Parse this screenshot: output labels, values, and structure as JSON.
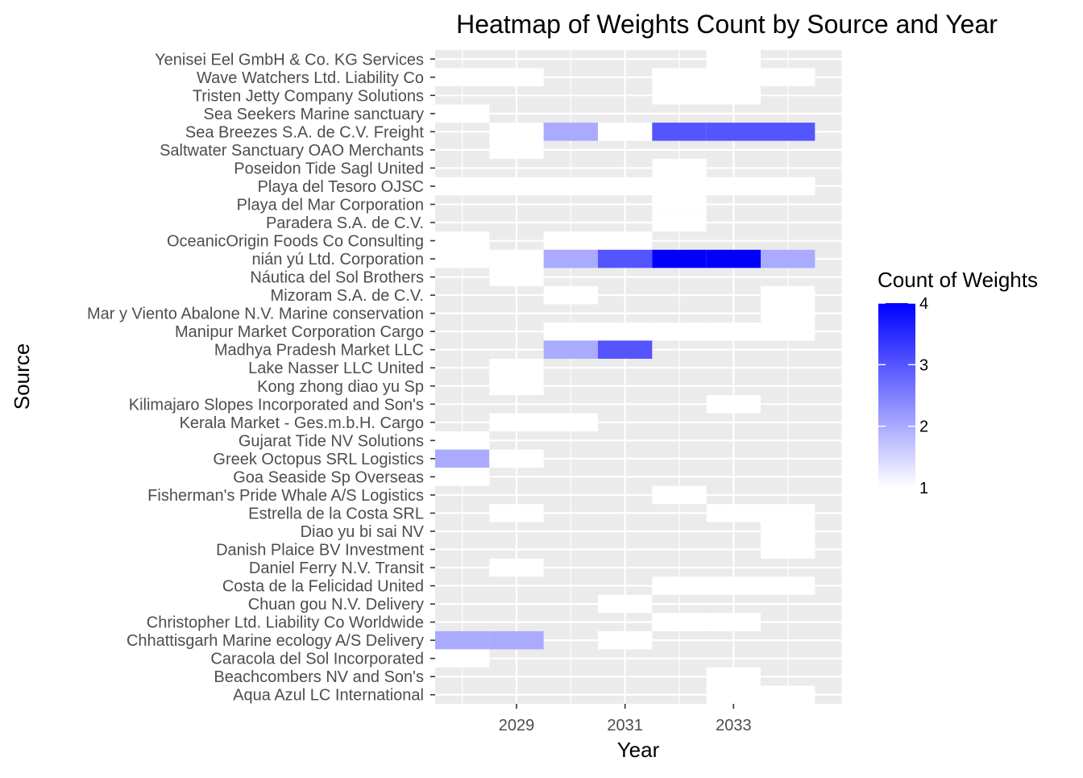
{
  "chart_data": {
    "type": "heatmap",
    "title": "Heatmap of Weights Count by Source and Year",
    "xlabel": "Year",
    "ylabel": "Source",
    "x_tick_labels": [
      "2029",
      "2031",
      "2033"
    ],
    "x_tick_values": [
      2029,
      2031,
      2033
    ],
    "xlim": [
      2027.5,
      2035.0
    ],
    "legend": {
      "title": "Count of Weights",
      "labels": [
        "4",
        "3",
        "2",
        "1"
      ],
      "values": [
        4,
        3,
        2,
        1
      ],
      "min": 1,
      "max": 4,
      "color_low": "#ffffff",
      "color_high": "#0000ff",
      "position": "right"
    },
    "panel_background": "#ebebeb",
    "grid": true,
    "sources": [
      "Yenisei  Eel GmbH & Co. KG Services",
      "Wave Watchers Ltd. Liability Co",
      "Tristen Jetty Company Solutions",
      "Sea Seekers Marine sanctuary",
      "Sea Breezes S.A. de C.V. Freight ",
      "Saltwater Sanctuary OAO Merchants",
      "Poseidon Tide Sagl United",
      "Playa del Tesoro OJSC",
      "Playa del Mar Corporation",
      "Paradera S.A. de C.V.",
      "OceanicOrigin Foods Co Consulting",
      "nián yú Ltd. Corporation",
      "Náutica del Sol Brothers",
      "Mizoram  S.A. de C.V.",
      "Mar y Viento Abalone N.V. Marine conservation",
      "Manipur  Market Corporation Cargo",
      "Madhya Pradesh  Market LLC",
      "Lake Nasser  LLC United",
      "Kong zhong diao yu  Sp",
      "Kilimajaro Slopes   Incorporated and Son's",
      "Kerala  Market - Ges.m.b.H. Cargo",
      "Gujarat   Tide NV Solutions",
      "Greek Octopus SRL Logistics",
      "Goa   Seaside Sp Overseas",
      "Fisherman's Pride Whale A/S Logistics",
      "Estrella de la Costa SRL",
      "Diao yu bi sai  NV",
      "Danish Plaice BV Investment",
      "Daniel Ferry N.V. Transit",
      "Costa de la Felicidad United",
      "Chuan gou  N.V. Delivery",
      "Christopher Ltd. Liability Co Worldwide",
      "Chhattisgarh   Marine ecology A/S Delivery",
      "Caracola del Sol Incorporated",
      "Beachcombers NV and Son's",
      "Aqua Azul LC International"
    ],
    "cells": [
      {
        "source": "Yenisei  Eel GmbH & Co. KG Services",
        "year": 2033,
        "count": 1
      },
      {
        "source": "Wave Watchers Ltd. Liability Co",
        "year": 2028,
        "count": 1
      },
      {
        "source": "Wave Watchers Ltd. Liability Co",
        "year": 2029,
        "count": 1
      },
      {
        "source": "Wave Watchers Ltd. Liability Co",
        "year": 2032,
        "count": 1
      },
      {
        "source": "Wave Watchers Ltd. Liability Co",
        "year": 2033,
        "count": 1
      },
      {
        "source": "Wave Watchers Ltd. Liability Co",
        "year": 2034,
        "count": 1
      },
      {
        "source": "Tristen Jetty Company Solutions",
        "year": 2032,
        "count": 1
      },
      {
        "source": "Tristen Jetty Company Solutions",
        "year": 2033,
        "count": 1
      },
      {
        "source": "Sea Seekers Marine sanctuary",
        "year": 2028,
        "count": 1
      },
      {
        "source": "Sea Breezes S.A. de C.V. Freight ",
        "year": 2029,
        "count": 1
      },
      {
        "source": "Sea Breezes S.A. de C.V. Freight ",
        "year": 2030,
        "count": 2
      },
      {
        "source": "Sea Breezes S.A. de C.V. Freight ",
        "year": 2031,
        "count": 1
      },
      {
        "source": "Sea Breezes S.A. de C.V. Freight ",
        "year": 2032,
        "count": 3
      },
      {
        "source": "Sea Breezes S.A. de C.V. Freight ",
        "year": 2033,
        "count": 3
      },
      {
        "source": "Sea Breezes S.A. de C.V. Freight ",
        "year": 2034,
        "count": 3
      },
      {
        "source": "Saltwater Sanctuary OAO Merchants",
        "year": 2029,
        "count": 1
      },
      {
        "source": "Poseidon Tide Sagl United",
        "year": 2032,
        "count": 1
      },
      {
        "source": "Playa del Tesoro OJSC",
        "year": 2028,
        "count": 1
      },
      {
        "source": "Playa del Tesoro OJSC",
        "year": 2029,
        "count": 1
      },
      {
        "source": "Playa del Tesoro OJSC",
        "year": 2030,
        "count": 1
      },
      {
        "source": "Playa del Tesoro OJSC",
        "year": 2031,
        "count": 1
      },
      {
        "source": "Playa del Tesoro OJSC",
        "year": 2032,
        "count": 1
      },
      {
        "source": "Playa del Tesoro OJSC",
        "year": 2033,
        "count": 1
      },
      {
        "source": "Playa del Tesoro OJSC",
        "year": 2034,
        "count": 1
      },
      {
        "source": "Playa del Mar Corporation",
        "year": 2032,
        "count": 1
      },
      {
        "source": "Paradera S.A. de C.V.",
        "year": 2032,
        "count": 1
      },
      {
        "source": "OceanicOrigin Foods Co Consulting",
        "year": 2028,
        "count": 1
      },
      {
        "source": "OceanicOrigin Foods Co Consulting",
        "year": 2030,
        "count": 1
      },
      {
        "source": "OceanicOrigin Foods Co Consulting",
        "year": 2031,
        "count": 1
      },
      {
        "source": "nián yú Ltd. Corporation",
        "year": 2028,
        "count": 1
      },
      {
        "source": "nián yú Ltd. Corporation",
        "year": 2029,
        "count": 1
      },
      {
        "source": "nián yú Ltd. Corporation",
        "year": 2030,
        "count": 2
      },
      {
        "source": "nián yú Ltd. Corporation",
        "year": 2031,
        "count": 3
      },
      {
        "source": "nián yú Ltd. Corporation",
        "year": 2032,
        "count": 4
      },
      {
        "source": "nián yú Ltd. Corporation",
        "year": 2033,
        "count": 4
      },
      {
        "source": "nián yú Ltd. Corporation",
        "year": 2034,
        "count": 2
      },
      {
        "source": "Náutica del Sol Brothers",
        "year": 2029,
        "count": 1
      },
      {
        "source": "Mizoram  S.A. de C.V.",
        "year": 2030,
        "count": 1
      },
      {
        "source": "Mizoram  S.A. de C.V.",
        "year": 2034,
        "count": 1
      },
      {
        "source": "Mar y Viento Abalone N.V. Marine conservation",
        "year": 2034,
        "count": 1
      },
      {
        "source": "Manipur  Market Corporation Cargo",
        "year": 2030,
        "count": 1
      },
      {
        "source": "Manipur  Market Corporation Cargo",
        "year": 2031,
        "count": 1
      },
      {
        "source": "Manipur  Market Corporation Cargo",
        "year": 2032,
        "count": 1
      },
      {
        "source": "Manipur  Market Corporation Cargo",
        "year": 2033,
        "count": 1
      },
      {
        "source": "Manipur  Market Corporation Cargo",
        "year": 2034,
        "count": 1
      },
      {
        "source": "Madhya Pradesh  Market LLC",
        "year": 2030,
        "count": 2
      },
      {
        "source": "Madhya Pradesh  Market LLC",
        "year": 2031,
        "count": 3
      },
      {
        "source": "Kong zhong diao yu  Sp",
        "year": 2029,
        "count": 1
      },
      {
        "source": "Lake Nasser  LLC United",
        "year": 2029,
        "count": 1
      },
      {
        "source": "Kilimajaro Slopes   Incorporated and Son's",
        "year": 2033,
        "count": 1
      },
      {
        "source": "Kerala  Market - Ges.m.b.H. Cargo",
        "year": 2029,
        "count": 1
      },
      {
        "source": "Kerala  Market - Ges.m.b.H. Cargo",
        "year": 2030,
        "count": 1
      },
      {
        "source": "Gujarat   Tide NV Solutions",
        "year": 2028,
        "count": 1
      },
      {
        "source": "Greek Octopus SRL Logistics",
        "year": 2028,
        "count": 2
      },
      {
        "source": "Greek Octopus SRL Logistics",
        "year": 2029,
        "count": 1
      },
      {
        "source": "Goa   Seaside Sp Overseas",
        "year": 2028,
        "count": 1
      },
      {
        "source": "Fisherman's Pride Whale A/S Logistics",
        "year": 2032,
        "count": 1
      },
      {
        "source": "Estrella de la Costa SRL",
        "year": 2029,
        "count": 1
      },
      {
        "source": "Estrella de la Costa SRL",
        "year": 2033,
        "count": 1
      },
      {
        "source": "Estrella de la Costa SRL",
        "year": 2034,
        "count": 1
      },
      {
        "source": "Diao yu bi sai  NV",
        "year": 2034,
        "count": 1
      },
      {
        "source": "Danish Plaice BV Investment",
        "year": 2034,
        "count": 1
      },
      {
        "source": "Daniel Ferry N.V. Transit",
        "year": 2029,
        "count": 1
      },
      {
        "source": "Costa de la Felicidad United",
        "year": 2032,
        "count": 1
      },
      {
        "source": "Costa de la Felicidad United",
        "year": 2033,
        "count": 1
      },
      {
        "source": "Costa de la Felicidad United",
        "year": 2034,
        "count": 1
      },
      {
        "source": "Chuan gou  N.V. Delivery",
        "year": 2031,
        "count": 1
      },
      {
        "source": "Christopher Ltd. Liability Co Worldwide",
        "year": 2032,
        "count": 1
      },
      {
        "source": "Christopher Ltd. Liability Co Worldwide",
        "year": 2033,
        "count": 1
      },
      {
        "source": "Chhattisgarh   Marine ecology A/S Delivery",
        "year": 2028,
        "count": 2
      },
      {
        "source": "Chhattisgarh   Marine ecology A/S Delivery",
        "year": 2029,
        "count": 2
      },
      {
        "source": "Chhattisgarh   Marine ecology A/S Delivery",
        "year": 2031,
        "count": 1
      },
      {
        "source": "Caracola del Sol Incorporated",
        "year": 2028,
        "count": 1
      },
      {
        "source": "Beachcombers NV and Son's",
        "year": 2033,
        "count": 1
      },
      {
        "source": "Aqua Azul LC International",
        "year": 2033,
        "count": 1
      },
      {
        "source": "Aqua Azul LC International",
        "year": 2034,
        "count": 1
      }
    ]
  }
}
